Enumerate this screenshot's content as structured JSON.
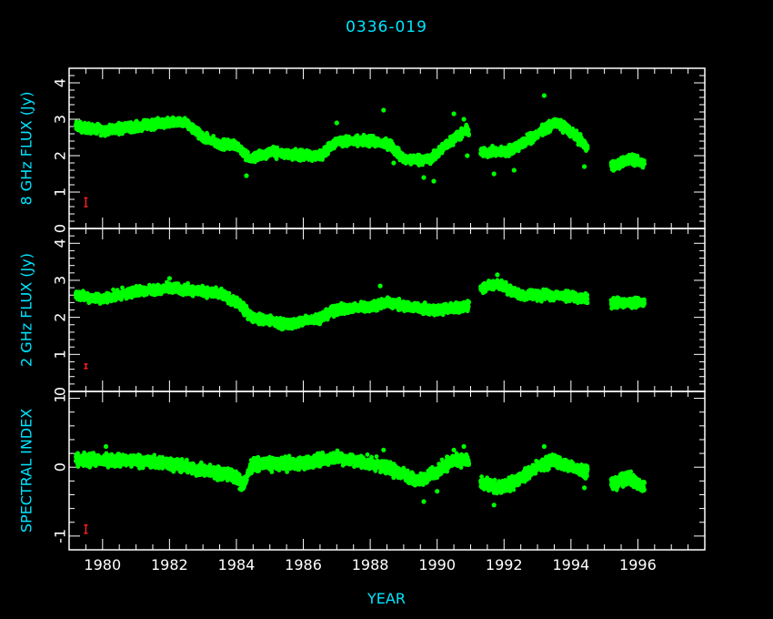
{
  "page": {
    "title": "0336-019",
    "background": "#000000",
    "frame_color": "#ffffff",
    "label_color": "#00e5ff",
    "data_color": "#00ff00",
    "errorbar_color": "#ff2020"
  },
  "chart_data": [
    {
      "type": "scatter",
      "panel": "top",
      "ylabel": "8 GHz FLUX (Jy)",
      "xlabel": "YEAR",
      "xlim": [
        1979.0,
        1998.0
      ],
      "ylim": [
        0,
        4.4
      ],
      "yticks": [
        0,
        1,
        2,
        3,
        4
      ],
      "xticks_labels": [],
      "typical_error_bar": {
        "x": 1979.5,
        "y": 0.72,
        "half_height": 0.12
      },
      "series": [
        {
          "color": "#00ff00",
          "trend": [
            [
              1979.2,
              2.8
            ],
            [
              1980.0,
              2.7
            ],
            [
              1981.0,
              2.8
            ],
            [
              1982.0,
              2.9
            ],
            [
              1982.5,
              2.9
            ],
            [
              1983.0,
              2.5
            ],
            [
              1983.5,
              2.3
            ],
            [
              1984.0,
              2.3
            ],
            [
              1984.4,
              1.9
            ],
            [
              1985.0,
              2.1
            ],
            [
              1986.0,
              2.0
            ],
            [
              1986.5,
              2.0
            ],
            [
              1987.0,
              2.4
            ],
            [
              1988.0,
              2.4
            ],
            [
              1988.6,
              2.3
            ],
            [
              1989.0,
              1.9
            ],
            [
              1989.8,
              1.9
            ],
            [
              1990.4,
              2.4
            ],
            [
              1990.9,
              2.7
            ],
            [
              1991.3,
              2.1
            ],
            [
              1992.0,
              2.1
            ],
            [
              1992.5,
              2.3
            ],
            [
              1993.0,
              2.6
            ],
            [
              1993.5,
              2.9
            ],
            [
              1993.8,
              2.8
            ],
            [
              1994.2,
              2.5
            ],
            [
              1994.5,
              2.2
            ],
            [
              1995.3,
              1.7
            ],
            [
              1995.7,
              1.9
            ],
            [
              1996.2,
              1.8
            ]
          ],
          "spread": 0.12,
          "outliers": [
            [
              1988.4,
              3.25
            ],
            [
              1993.2,
              3.65
            ],
            [
              1993.0,
              2.5
            ],
            [
              1984.3,
              1.45
            ],
            [
              1989.6,
              1.4
            ],
            [
              1989.9,
              1.3
            ],
            [
              1990.9,
              2.0
            ],
            [
              1991.7,
              1.5
            ],
            [
              1994.4,
              1.7
            ],
            [
              1987.0,
              2.9
            ],
            [
              1990.8,
              3.0
            ],
            [
              1990.5,
              3.15
            ],
            [
              1992.3,
              1.6
            ],
            [
              1988.7,
              1.8
            ]
          ],
          "gaps": [
            [
              1990.95,
              1991.3
            ],
            [
              1994.5,
              1995.2
            ],
            [
              1996.2,
              1998.0
            ]
          ]
        }
      ]
    },
    {
      "type": "scatter",
      "panel": "middle",
      "ylabel": "2 GHz FLUX (Jy)",
      "xlabel": "YEAR",
      "xlim": [
        1979.0,
        1998.0
      ],
      "ylim": [
        0,
        4.4
      ],
      "yticks": [
        0,
        1,
        2,
        3,
        4
      ],
      "xticks_labels": [],
      "typical_error_bar": {
        "x": 1979.5,
        "y": 0.68,
        "half_height": 0.06
      },
      "series": [
        {
          "color": "#00ff00",
          "trend": [
            [
              1979.2,
              2.6
            ],
            [
              1980.0,
              2.5
            ],
            [
              1981.0,
              2.7
            ],
            [
              1982.0,
              2.8
            ],
            [
              1983.0,
              2.7
            ],
            [
              1983.6,
              2.6
            ],
            [
              1984.0,
              2.4
            ],
            [
              1984.5,
              2.0
            ],
            [
              1985.0,
              1.9
            ],
            [
              1985.5,
              1.8
            ],
            [
              1986.0,
              1.9
            ],
            [
              1986.5,
              2.0
            ],
            [
              1987.0,
              2.2
            ],
            [
              1988.0,
              2.3
            ],
            [
              1988.5,
              2.4
            ],
            [
              1989.0,
              2.3
            ],
            [
              1990.0,
              2.2
            ],
            [
              1990.9,
              2.3
            ],
            [
              1991.3,
              2.8
            ],
            [
              1991.8,
              2.9
            ],
            [
              1992.5,
              2.6
            ],
            [
              1993.5,
              2.6
            ],
            [
              1994.5,
              2.5
            ],
            [
              1995.3,
              2.4
            ],
            [
              1996.2,
              2.4
            ]
          ],
          "spread": 0.12,
          "outliers": [
            [
              1988.3,
              2.85
            ],
            [
              1991.8,
              3.15
            ],
            [
              1982.0,
              3.05
            ]
          ],
          "gaps": [
            [
              1990.95,
              1991.3
            ],
            [
              1994.5,
              1995.2
            ],
            [
              1996.2,
              1998.0
            ]
          ]
        }
      ]
    },
    {
      "type": "scatter",
      "panel": "bottom",
      "ylabel": "SPECTRAL INDEX",
      "xlabel": "YEAR",
      "xlim": [
        1979.0,
        1998.0
      ],
      "ylim": [
        -1.2,
        1.1
      ],
      "yticks": [
        -1,
        0,
        1
      ],
      "xticks": [
        1980,
        1982,
        1984,
        1986,
        1988,
        1990,
        1992,
        1994,
        1996
      ],
      "xticks_labels": [
        "1980",
        "1982",
        "1984",
        "1986",
        "1988",
        "1990",
        "1992",
        "1994",
        "1996"
      ],
      "typical_error_bar": {
        "x": 1979.5,
        "y": -0.9,
        "half_height": 0.06
      },
      "series": [
        {
          "color": "#00ff00",
          "trend": [
            [
              1979.2,
              0.1
            ],
            [
              1980.0,
              0.1
            ],
            [
              1981.0,
              0.1
            ],
            [
              1982.0,
              0.05
            ],
            [
              1983.0,
              -0.05
            ],
            [
              1983.8,
              -0.1
            ],
            [
              1984.2,
              -0.25
            ],
            [
              1984.5,
              0.05
            ],
            [
              1985.0,
              0.05
            ],
            [
              1986.0,
              0.05
            ],
            [
              1987.0,
              0.15
            ],
            [
              1988.0,
              0.05
            ],
            [
              1988.5,
              0.0
            ],
            [
              1989.0,
              -0.1
            ],
            [
              1989.5,
              -0.2
            ],
            [
              1990.0,
              -0.05
            ],
            [
              1990.5,
              0.1
            ],
            [
              1990.9,
              0.1
            ],
            [
              1991.3,
              -0.25
            ],
            [
              1992.0,
              -0.3
            ],
            [
              1992.5,
              -0.15
            ],
            [
              1993.0,
              0.0
            ],
            [
              1993.5,
              0.1
            ],
            [
              1994.0,
              0.0
            ],
            [
              1994.5,
              -0.05
            ],
            [
              1995.3,
              -0.25
            ],
            [
              1995.7,
              -0.15
            ],
            [
              1996.2,
              -0.3
            ]
          ],
          "spread": 0.08,
          "outliers": [
            [
              1980.1,
              0.3
            ],
            [
              1988.4,
              0.25
            ],
            [
              1993.2,
              0.3
            ],
            [
              1989.6,
              -0.5
            ],
            [
              1991.7,
              -0.55
            ],
            [
              1990.5,
              0.25
            ],
            [
              1990.8,
              0.3
            ],
            [
              1990.0,
              -0.35
            ],
            [
              1990.3,
              0.15
            ],
            [
              1988.7,
              -0.15
            ],
            [
              1994.4,
              -0.3
            ]
          ],
          "gaps": [
            [
              1990.95,
              1991.3
            ],
            [
              1994.5,
              1995.2
            ],
            [
              1996.2,
              1998.0
            ]
          ]
        }
      ]
    }
  ]
}
